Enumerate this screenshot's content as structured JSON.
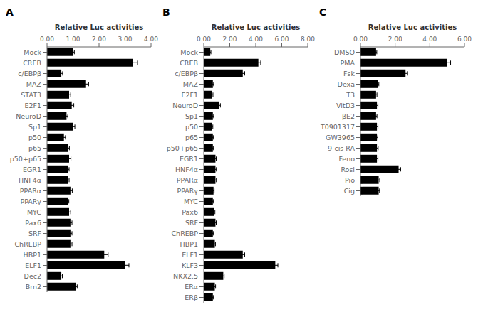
{
  "chart_data": [
    {
      "type": "bar",
      "orientation": "horizontal",
      "title": "A",
      "xlabel": "Relative Luc activities",
      "xlim": [
        0,
        4.0
      ],
      "xticks": [
        {
          "value": 0.0,
          "label": "0.00"
        },
        {
          "value": 1.0,
          "label": "1.00"
        },
        {
          "value": 2.0,
          "label": "2.00"
        },
        {
          "value": 3.0,
          "label": "3.00"
        },
        {
          "value": 4.0,
          "label": "4.00"
        }
      ],
      "categories": [
        "Mock",
        "CREB",
        "c/EBPβ",
        "MAZ",
        "STAT3",
        "E2F1",
        "NeuroD",
        "Sp1",
        "p50",
        "p65",
        "p50+p65",
        "EGR1",
        "HNF4α",
        "PPARα",
        "PPARγ",
        "MYC",
        "Pax6",
        "SRF",
        "ChREBP",
        "HBP1",
        "ELF1",
        "Dec2",
        "Brn2"
      ],
      "values": [
        1.0,
        3.3,
        0.55,
        1.5,
        0.85,
        0.95,
        0.75,
        1.0,
        0.65,
        0.8,
        0.85,
        0.8,
        0.8,
        0.9,
        0.8,
        0.85,
        0.9,
        0.9,
        0.9,
        2.2,
        3.0,
        0.55,
        1.1
      ],
      "errors": [
        0.05,
        0.18,
        0.05,
        0.1,
        0.06,
        0.08,
        0.05,
        0.07,
        0.06,
        0.06,
        0.07,
        0.05,
        0.05,
        0.07,
        0.04,
        0.06,
        0.06,
        0.06,
        0.06,
        0.15,
        0.15,
        0.04,
        0.06
      ],
      "color": "#000000"
    },
    {
      "type": "bar",
      "orientation": "horizontal",
      "title": "B",
      "xlabel": "Relative Luc activities",
      "xlim": [
        0,
        8.0
      ],
      "xticks": [
        {
          "value": 0.0,
          "label": "0.00"
        },
        {
          "value": 2.0,
          "label": "2.00"
        },
        {
          "value": 4.0,
          "label": "4.00"
        },
        {
          "value": 6.0,
          "label": "6.00"
        },
        {
          "value": 8.0,
          "label": "8.00"
        }
      ],
      "categories": [
        "Mock",
        "CREB",
        "c/EBPβ",
        "MAZ",
        "E2F1",
        "NeuroD",
        "Sp1",
        "p50",
        "p65",
        "p50+p65",
        "EGR1",
        "HNF4α",
        "PPARα",
        "PPARγ",
        "MYC",
        "Pax6",
        "SRF",
        "ChREBP",
        "HBP1",
        "ELF1",
        "KLF3",
        "NKX2.5",
        "ERα",
        "ERβ"
      ],
      "values": [
        0.5,
        4.2,
        3.0,
        0.7,
        0.65,
        1.2,
        0.7,
        0.65,
        0.7,
        0.7,
        0.9,
        0.9,
        0.9,
        0.75,
        0.7,
        0.8,
        0.9,
        0.7,
        0.85,
        3.0,
        5.5,
        1.5,
        0.85,
        0.7
      ],
      "errors": [
        0.05,
        0.18,
        0.15,
        0.06,
        0.06,
        0.08,
        0.06,
        0.05,
        0.05,
        0.05,
        0.06,
        0.07,
        0.07,
        0.05,
        0.05,
        0.06,
        0.06,
        0.05,
        0.05,
        0.15,
        0.2,
        0.07,
        0.06,
        0.05
      ],
      "color": "#000000"
    },
    {
      "type": "bar",
      "orientation": "horizontal",
      "title": "C",
      "xlabel": "Relative Luc activities",
      "xlim": [
        0,
        6.0
      ],
      "xticks": [
        {
          "value": 0.0,
          "label": "0.00"
        },
        {
          "value": 2.0,
          "label": "2.00"
        },
        {
          "value": 4.0,
          "label": "4.00"
        },
        {
          "value": 6.0,
          "label": "6.00"
        }
      ],
      "categories": [
        "DMSO",
        "PMA",
        "Fsk",
        "Dexa",
        "T3",
        "VitD3",
        "βE2",
        "T0901317",
        "GW3965",
        "9-cis RA",
        "Feno",
        "Rosi",
        "Pio",
        "Cig"
      ],
      "values": [
        0.9,
        5.0,
        2.6,
        1.0,
        0.9,
        0.95,
        0.9,
        0.95,
        0.95,
        0.95,
        0.95,
        2.2,
        1.05,
        1.05
      ],
      "errors": [
        0.04,
        0.2,
        0.12,
        0.06,
        0.05,
        0.06,
        0.05,
        0.06,
        0.05,
        0.07,
        0.06,
        0.12,
        0.06,
        0.05
      ],
      "color": "#000000"
    }
  ]
}
